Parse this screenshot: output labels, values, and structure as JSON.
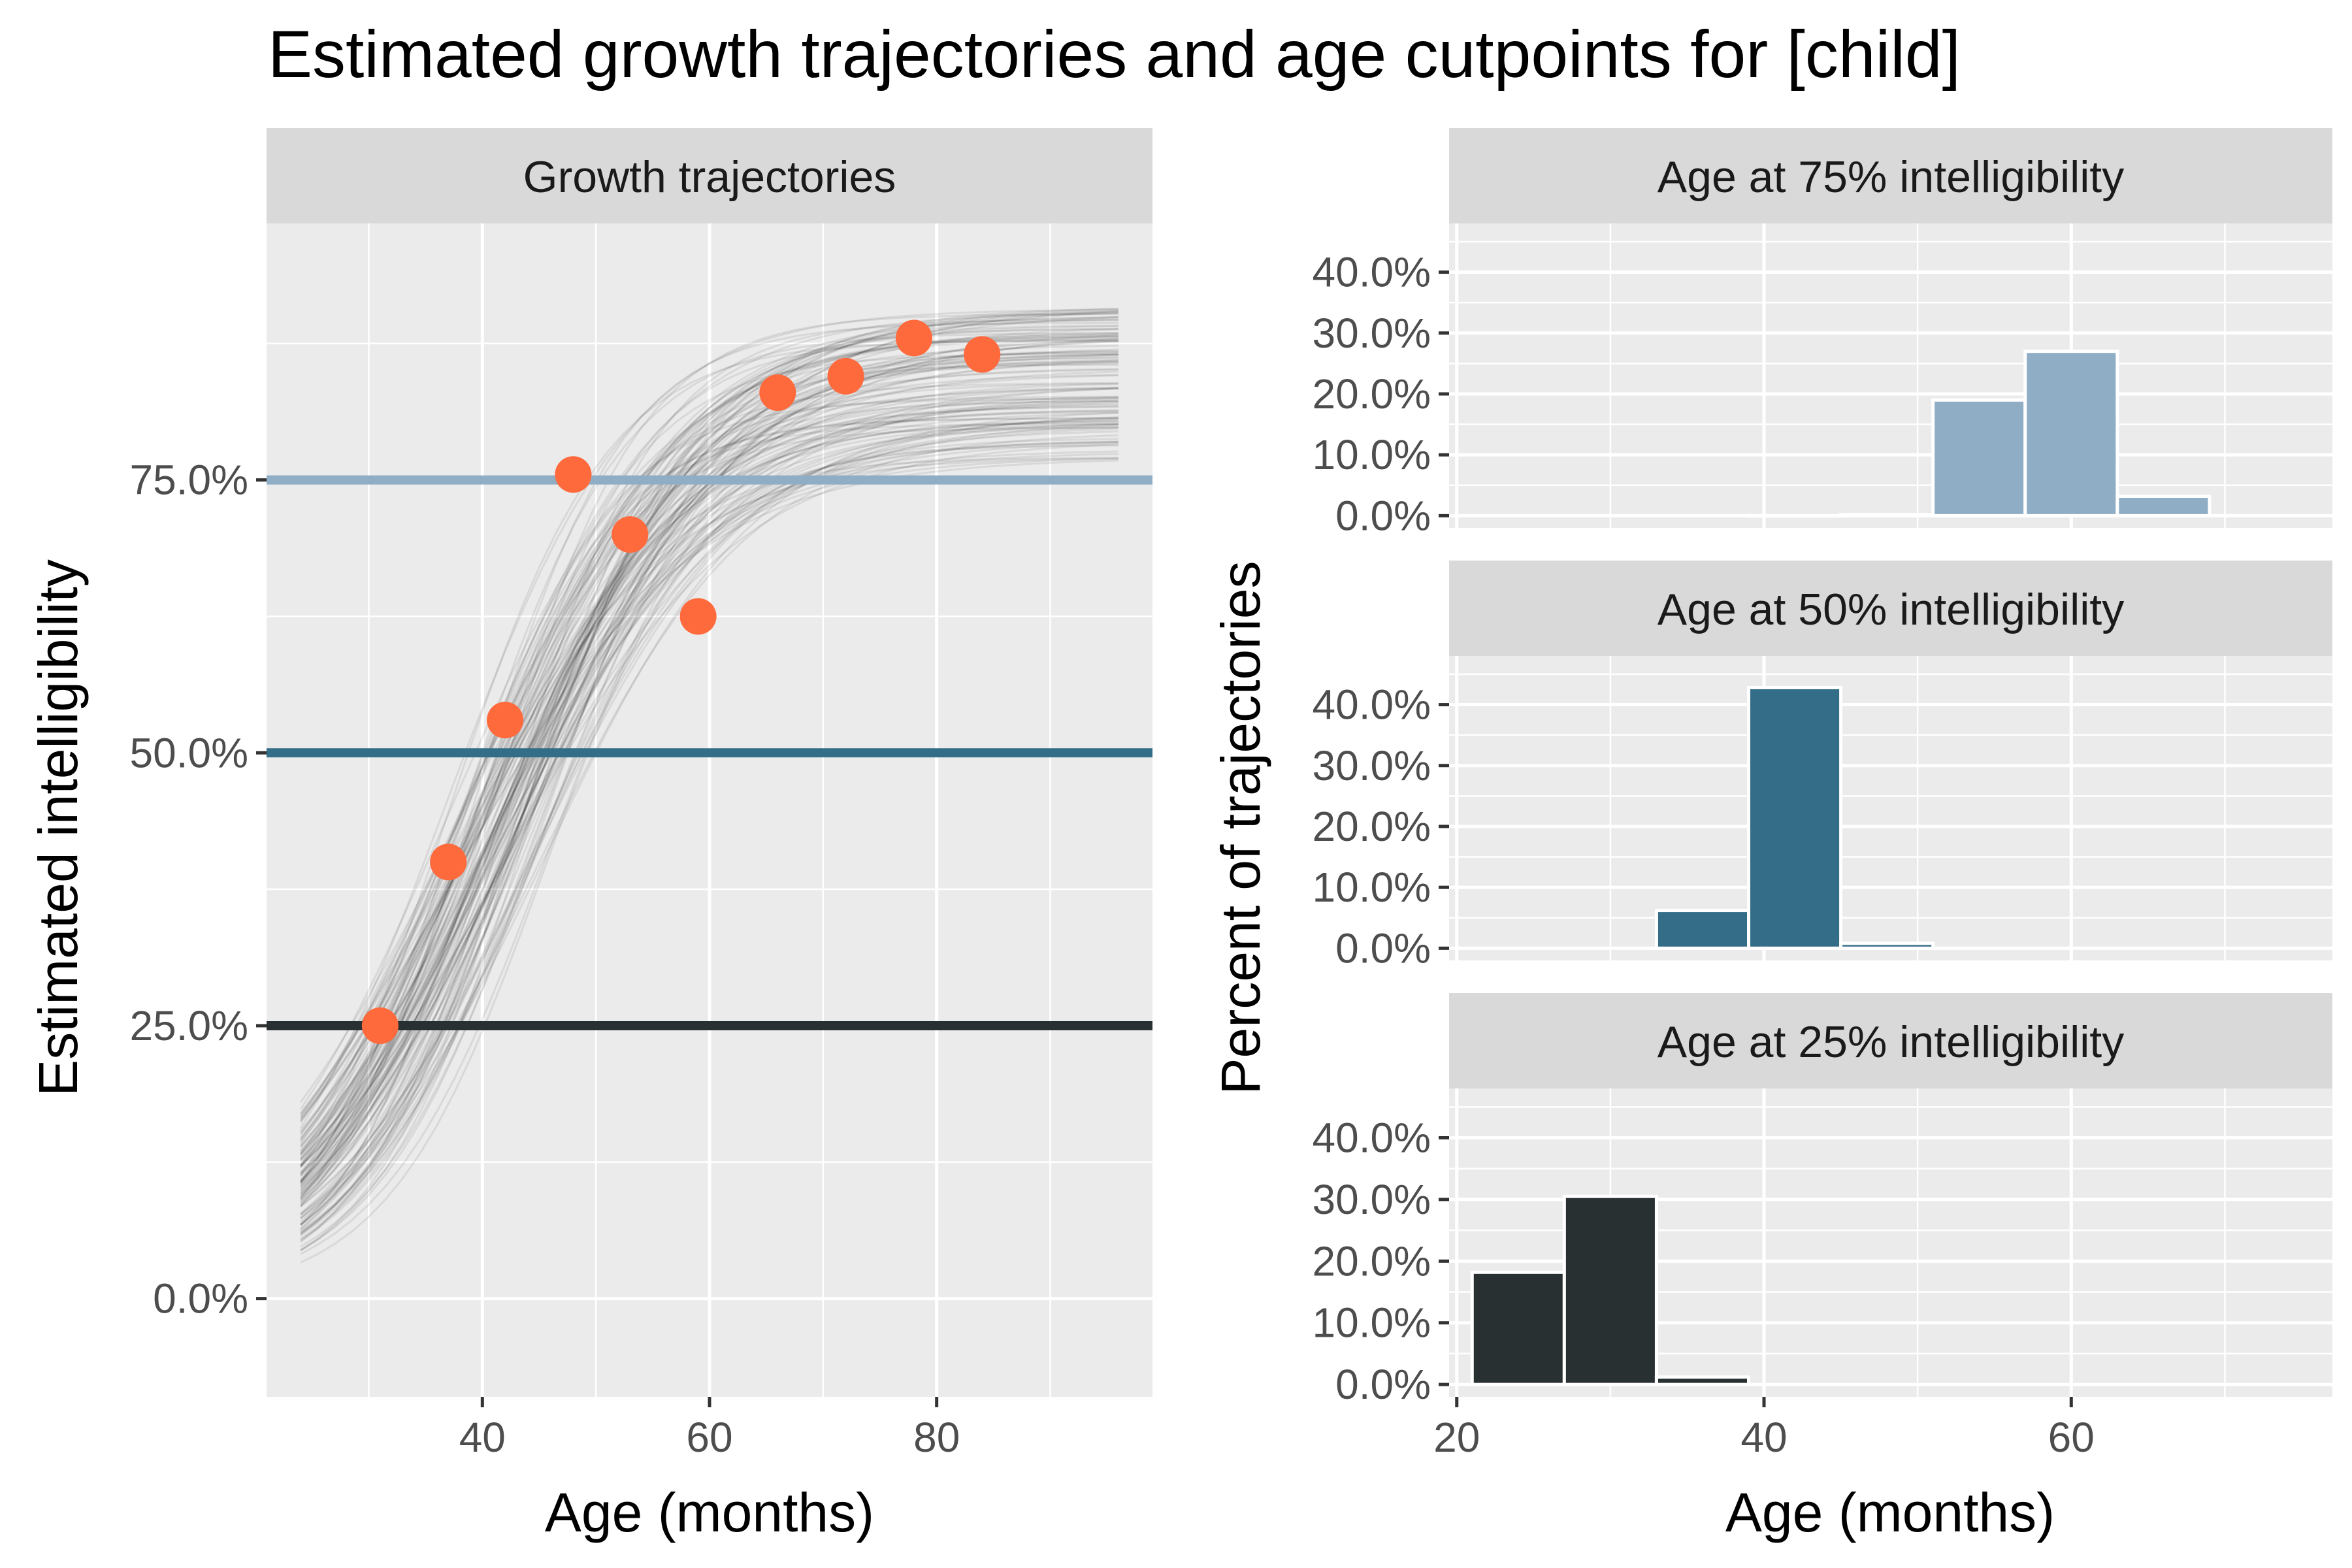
{
  "title": "Estimated growth trajectories and age cutpoints for [child]",
  "colors": {
    "panel_bg": "#EBEBEB",
    "strip_bg": "#D9D9D9",
    "grid": "#FFFFFF",
    "trajectory": "#000000",
    "points": "#FF6A3D",
    "cut75": "#8FADC4",
    "cut50": "#346D88",
    "cut25": "#283032"
  },
  "chart_data": [
    {
      "type": "line",
      "panel": "Growth trajectories",
      "xlabel": "Age (months)",
      "ylabel": "Estimated intelligibility",
      "xlim": [
        21,
        99
      ],
      "ylim": [
        -0.09,
        0.985
      ],
      "x_ticks": [
        40,
        60,
        80
      ],
      "x_tick_labels": [
        "40",
        "60",
        "80"
      ],
      "y_ticks": [
        0,
        0.25,
        0.5,
        0.75
      ],
      "y_tick_labels": [
        "0.0%",
        "25.0%",
        "50.0%",
        "75.0%"
      ],
      "observed_points": {
        "x": [
          31,
          37,
          42,
          48,
          53,
          59,
          66,
          72,
          78,
          84
        ],
        "y": [
          0.25,
          0.4,
          0.53,
          0.755,
          0.7,
          0.625,
          0.83,
          0.845,
          0.88,
          0.865
        ]
      },
      "trajectory_model": {
        "form": "logistic",
        "x_range": [
          24,
          96
        ],
        "n_draws": 120,
        "asymptote_range": [
          0.77,
          0.91
        ],
        "midpoint_range": [
          36.5,
          46
        ],
        "scale_range": [
          6.5,
          10.5
        ]
      },
      "cutpoint_lines": [
        {
          "value": 0.75,
          "color": "#8FADC4"
        },
        {
          "value": 0.5,
          "color": "#346D88"
        },
        {
          "value": 0.25,
          "color": "#283032"
        }
      ]
    },
    {
      "type": "bar",
      "panel": "Age at 75% intelligibility",
      "bin_width": 6,
      "bin_centers": [
        42,
        48,
        54,
        60,
        66
      ],
      "values": [
        0.0,
        0.002,
        0.19,
        0.27,
        0.032
      ],
      "color": "#8FADC4"
    },
    {
      "type": "bar",
      "panel": "Age at 50% intelligibility",
      "bin_width": 6,
      "bin_centers": [
        36,
        42,
        48
      ],
      "values": [
        0.062,
        0.428,
        0.008
      ],
      "color": "#346D88"
    },
    {
      "type": "bar",
      "panel": "Age at 25% intelligibility",
      "bin_width": 6,
      "bin_centers": [
        24,
        30,
        36
      ],
      "values": [
        0.182,
        0.305,
        0.012
      ],
      "color": "#283032"
    }
  ],
  "histogram_axes": {
    "xlabel": "Age (months)",
    "ylabel": "Percent of trajectories",
    "xlim": [
      19.5,
      77
    ],
    "ylim": [
      -0.02,
      0.48
    ],
    "x_ticks": [
      20,
      40,
      60
    ],
    "x_tick_labels": [
      "20",
      "40",
      "60"
    ],
    "y_ticks": [
      0,
      0.1,
      0.2,
      0.3,
      0.4
    ],
    "y_tick_labels": [
      "0.0%",
      "10.0%",
      "20.0%",
      "30.0%",
      "40.0%"
    ]
  }
}
